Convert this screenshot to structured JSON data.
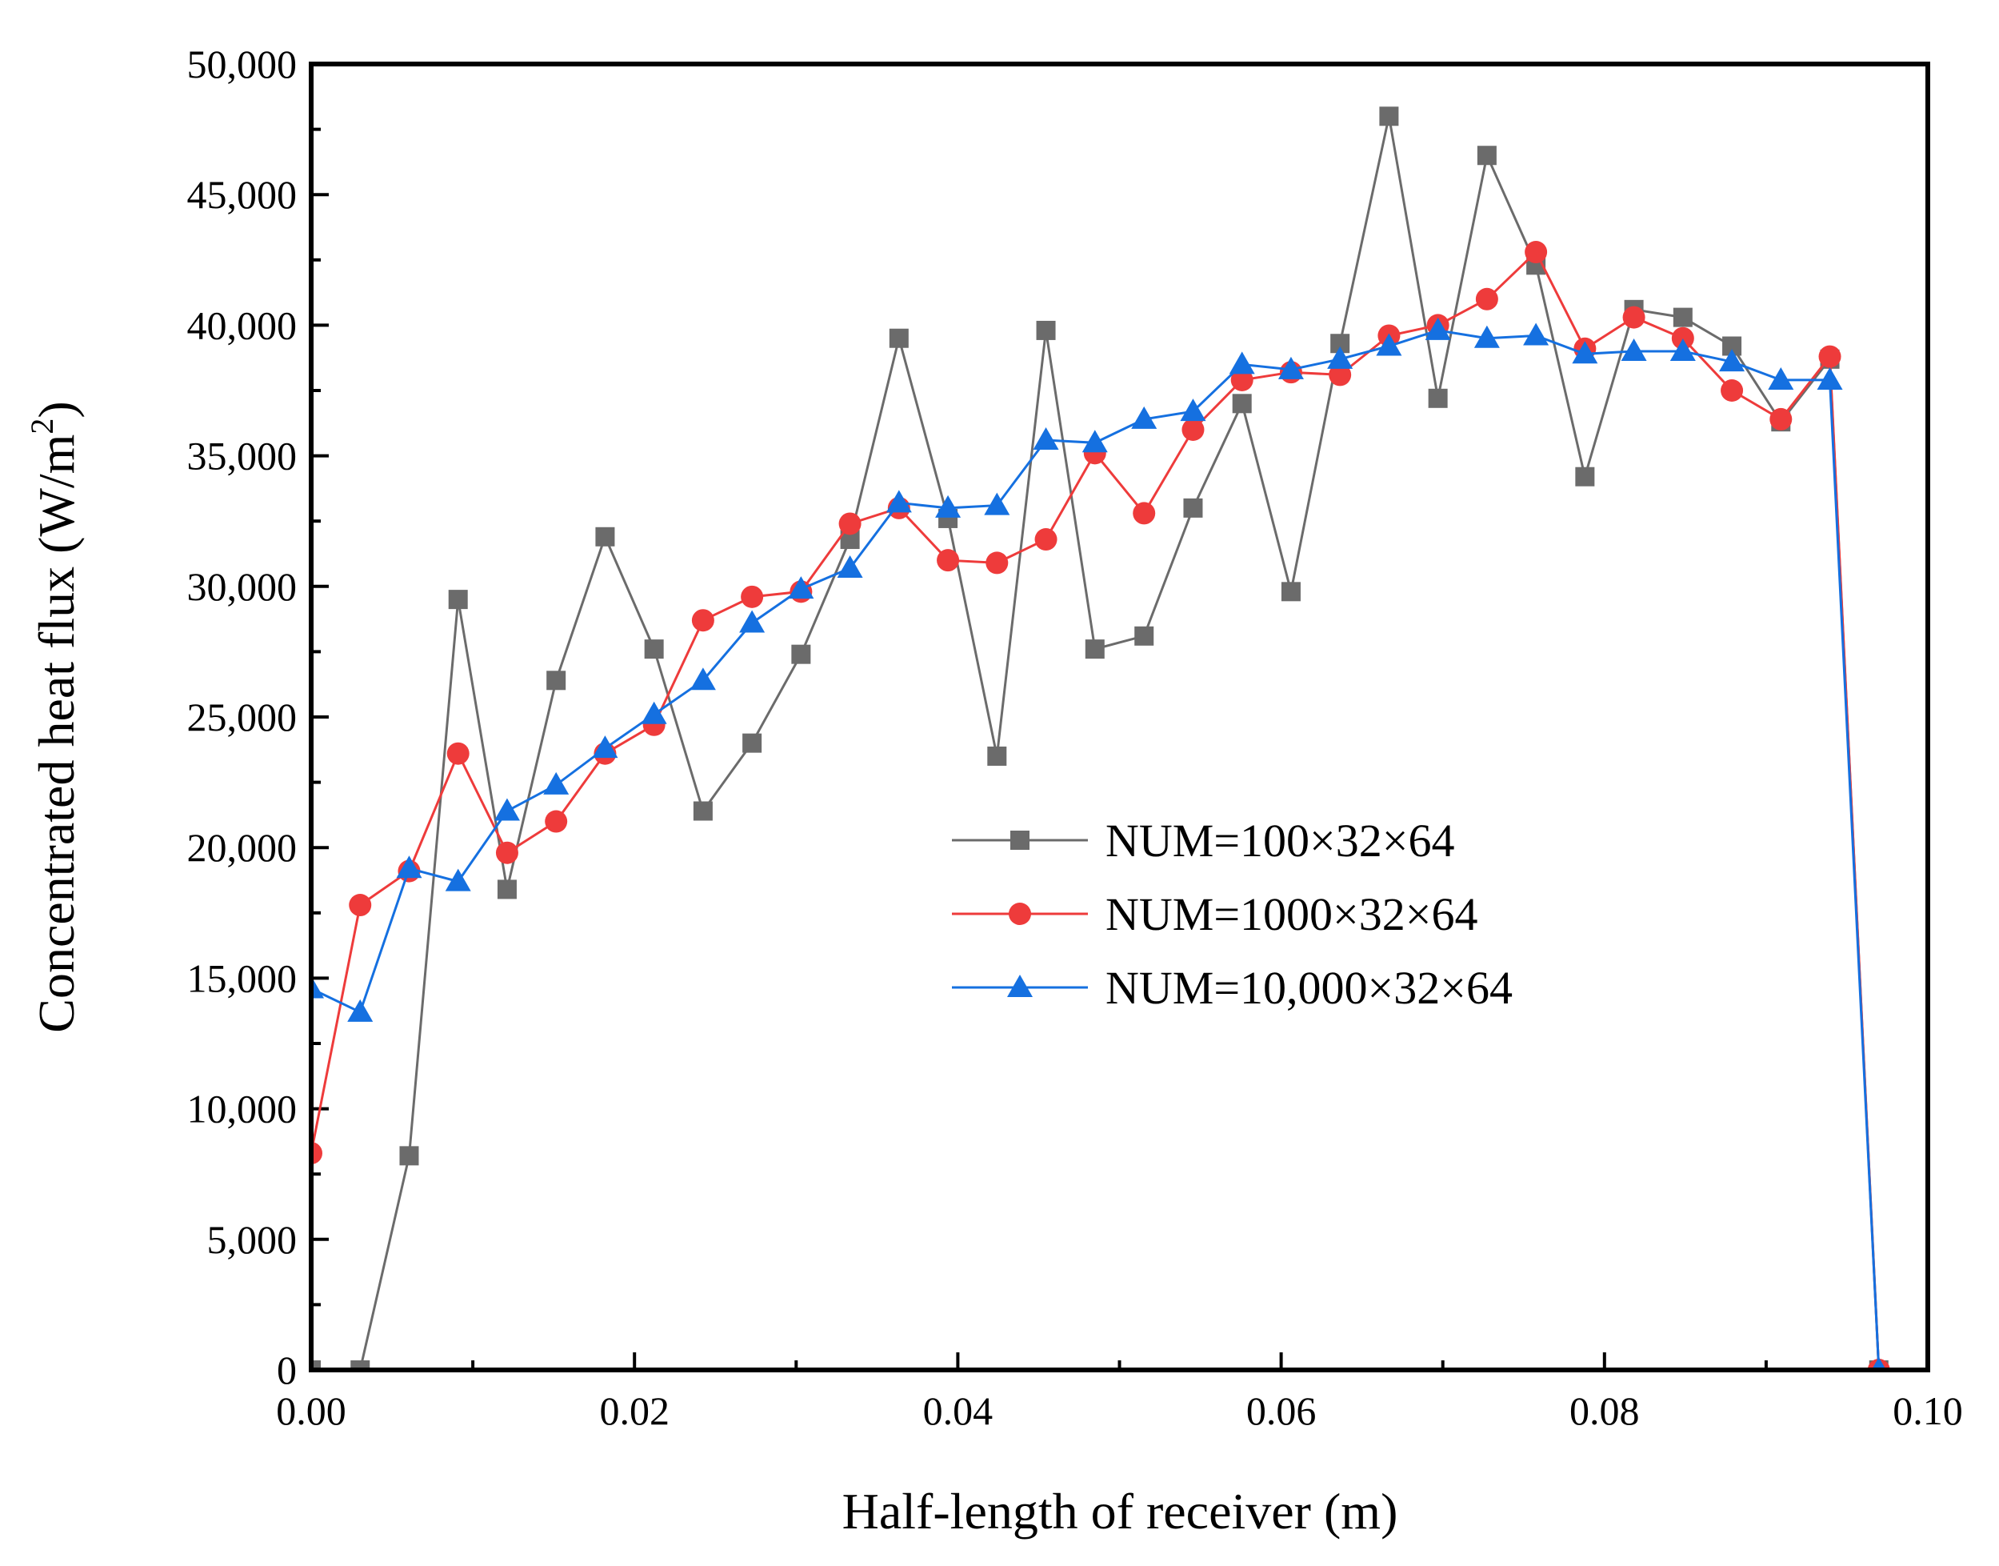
{
  "chart_data": {
    "type": "line",
    "xlabel": "Half-length of receiver (m)",
    "ylabel": "Concentrated heat flux (W/m",
    "ylabel_sup": "2",
    "ylabel_close": ")",
    "xlim": [
      0,
      0.1
    ],
    "ylim": [
      0,
      50000
    ],
    "x_ticks": [
      0,
      0.02,
      0.04,
      0.06,
      0.08,
      0.1
    ],
    "x_tick_labels": [
      "0.00",
      "0.02",
      "0.04",
      "0.06",
      "0.08",
      "0.10"
    ],
    "y_ticks": [
      0,
      5000,
      10000,
      15000,
      20000,
      25000,
      30000,
      35000,
      40000,
      45000,
      50000
    ],
    "y_tick_labels": [
      "0",
      "5,000",
      "10,000",
      "15,000",
      "20,000",
      "25,000",
      "30,000",
      "35,000",
      "40,000",
      "45,000",
      "50,000"
    ],
    "x": [
      0.0,
      0.00303,
      0.00606,
      0.00909,
      0.01212,
      0.01515,
      0.01818,
      0.02121,
      0.02424,
      0.02727,
      0.0303,
      0.03333,
      0.03636,
      0.03939,
      0.04242,
      0.04545,
      0.04848,
      0.05152,
      0.05455,
      0.05758,
      0.06061,
      0.06364,
      0.06667,
      0.0697,
      0.07273,
      0.07576,
      0.07879,
      0.08182,
      0.08485,
      0.08788,
      0.09091,
      0.09394,
      0.09697
    ],
    "legend_position": "center-right",
    "series": [
      {
        "name": "NUM=100×32×64",
        "color": "#6b6b6b",
        "marker": "square",
        "values": [
          0,
          0,
          8200,
          29500,
          18400,
          26400,
          31900,
          27600,
          21400,
          24000,
          27400,
          31800,
          39500,
          32600,
          23500,
          39800,
          27600,
          28100,
          33000,
          37000,
          29800,
          39300,
          48000,
          37200,
          46500,
          42300,
          34200,
          40600,
          40300,
          39200,
          36300,
          38700,
          0
        ]
      },
      {
        "name": "NUM=1000×32×64",
        "color": "#ee3b3b",
        "marker": "circle",
        "values": [
          8300,
          17800,
          19100,
          23600,
          19800,
          21000,
          23600,
          24700,
          28700,
          29600,
          29800,
          32400,
          33000,
          31000,
          30900,
          31800,
          35100,
          32800,
          36000,
          37900,
          38200,
          38100,
          39600,
          40000,
          41000,
          42800,
          39100,
          40300,
          39500,
          37500,
          36400,
          38800,
          0
        ]
      },
      {
        "name": "NUM=10,000×32×64",
        "color": "#1570e0",
        "marker": "triangle",
        "values": [
          14600,
          13700,
          19200,
          18700,
          21400,
          22400,
          23800,
          25100,
          26400,
          28600,
          29900,
          30700,
          33200,
          33000,
          33100,
          35600,
          35500,
          36400,
          36700,
          38500,
          38300,
          38700,
          39200,
          39800,
          39500,
          39600,
          38900,
          39000,
          39000,
          38600,
          37900,
          37900,
          0
        ]
      }
    ]
  }
}
